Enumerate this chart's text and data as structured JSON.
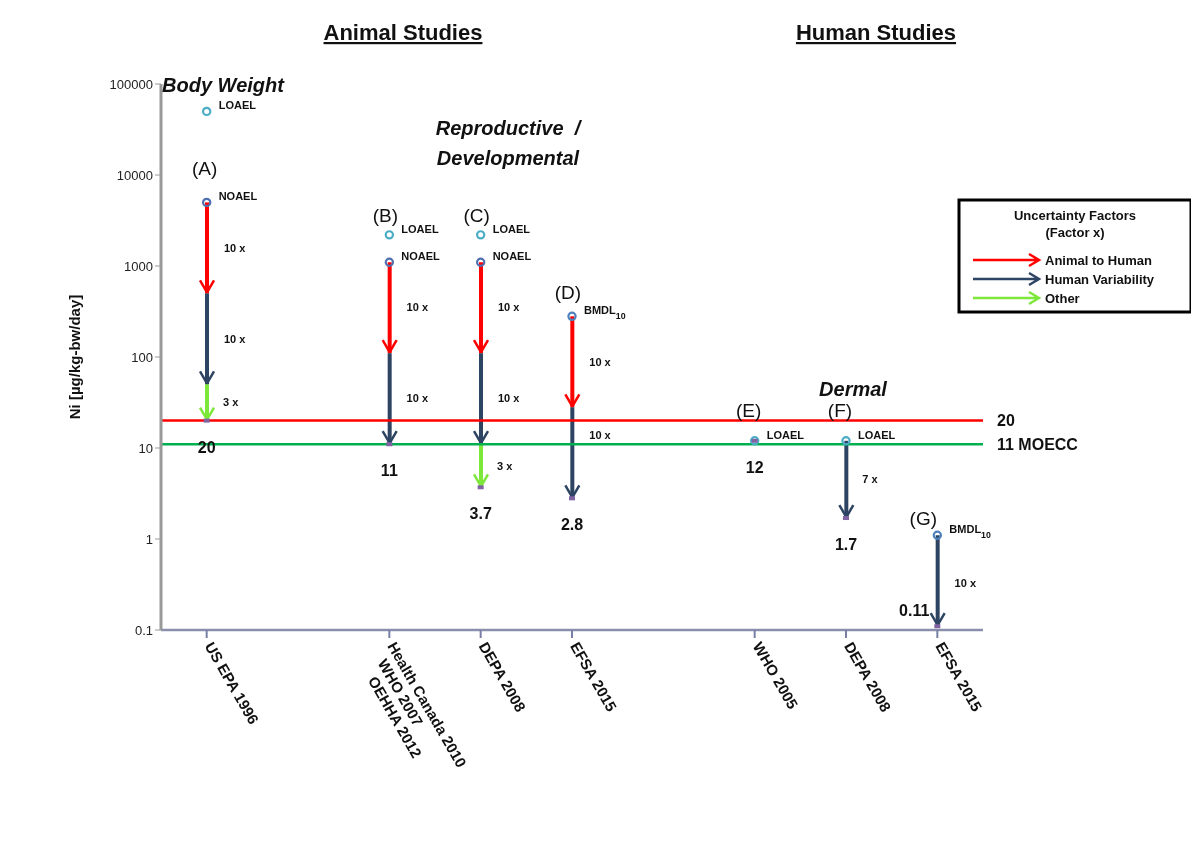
{
  "chart_data": {
    "type": "bar",
    "ylabel": "Ni [µg/kg-bw/day]",
    "legend_title": "Uncertainty Factors\n(Factor x)",
    "legend": "top right",
    "log": true,
    "categories": [
      "US EPA 1996",
      null,
      "Health Canada 2010\nWHO 2007\nOEHHA 2012",
      "DEPA 2008",
      "EFSA 2015",
      null,
      "WHO 2005",
      "DEPA 2008",
      "EFSA 2015"
    ],
    "ylim": [
      0.1,
      100000
    ],
    "yticks": [
      0.1,
      1,
      10,
      100,
      1000,
      10000,
      100000
    ],
    "series": [
      {
        "name": "Animal to Human",
        "color": "#ff0000",
        "base": [
          500,
          null,
          110,
          110,
          28,
          null,
          null,
          null,
          null
        ],
        "values": [
          4500,
          null,
          990,
          990,
          252,
          null,
          null,
          null,
          null
        ]
      },
      {
        "name": "Human Variability",
        "color": "#2e4463",
        "base": [
          50,
          null,
          11,
          11,
          2.8,
          null,
          null,
          1.7,
          0.11
        ],
        "values": [
          450,
          null,
          99,
          99,
          25.2,
          null,
          null,
          10.3,
          0.99
        ]
      },
      {
        "name": "Other",
        "color": "#7ee83a",
        "base": [
          20,
          null,
          null,
          3.7,
          null,
          null,
          null,
          null,
          null
        ],
        "values": [
          30,
          null,
          null,
          7.3,
          null,
          null,
          null,
          null,
          null
        ]
      },
      {
        "name": "LOAEL",
        "type": "scatter",
        "color": "#4bacc6",
        "marker": "circle",
        "values": [
          50000,
          null,
          2200,
          2200,
          null,
          null,
          12,
          12,
          null
        ]
      },
      {
        "name": "NOAEL",
        "type": "scatter",
        "color": "#4f6fb0",
        "marker": "circle",
        "values": [
          5000,
          null,
          1100,
          1100,
          null,
          null,
          null,
          null,
          null
        ]
      },
      {
        "name": "BMDL$_{10}$",
        "type": "scatter",
        "color": "#4f81bd",
        "marker": "circle",
        "values": [
          null,
          null,
          null,
          null,
          280,
          null,
          null,
          null,
          1.1
        ]
      },
      {
        "type": "scatter",
        "color": "#8064a2",
        "marker": "square",
        "values": [
          20,
          null,
          11,
          3.7,
          2.8,
          null,
          12,
          1.7,
          0.11
        ],
        "value_labels": [
          "20",
          null,
          "11",
          "3.7",
          "2.8",
          null,
          "12",
          "1.7",
          "0.11"
        ]
      }
    ],
    "ref_lines": [
      {
        "axis": "y",
        "value": 20,
        "label": "20",
        "color": "#ff0000"
      },
      {
        "axis": "y",
        "value": 11,
        "label": "11 MOECC",
        "color": "#00b050"
      }
    ],
    "annotations": [
      "Animal Studies",
      "Human Studies",
      "Body Weight",
      "Reproductive  /\nDevelopmental",
      "Dermal",
      "(A)",
      "(B)",
      "(C)",
      "(D)",
      "(E)",
      "(F)",
      "(G)",
      "10 x",
      "10 x",
      "3 x",
      "10 x",
      "10 x",
      "10 x",
      "10 x",
      "3 x",
      "10 x",
      "10 x",
      "7 x",
      "10 x"
    ]
  }
}
